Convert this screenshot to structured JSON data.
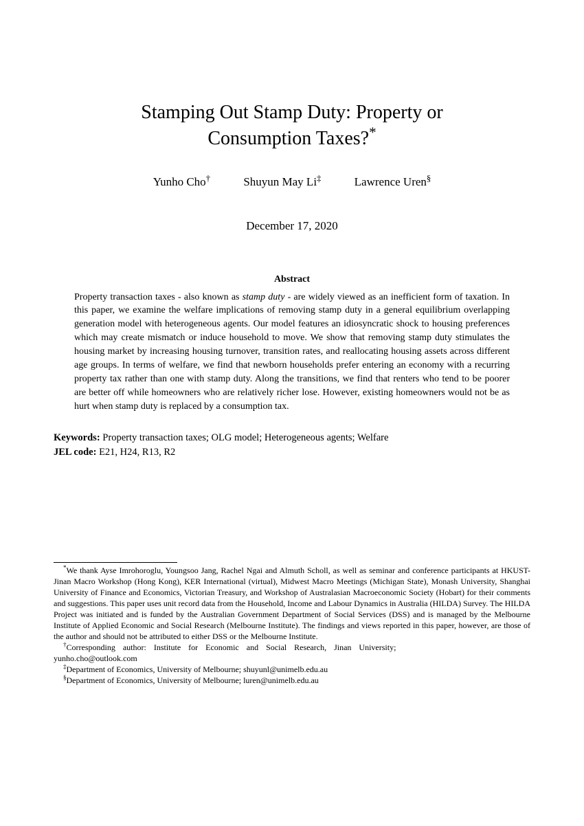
{
  "title_line1": "Stamping Out Stamp Duty: Property or",
  "title_line2": "Consumption Taxes?",
  "title_marker": "*",
  "authors": [
    {
      "name": "Yunho Cho",
      "marker": "†"
    },
    {
      "name": "Shuyun May Li",
      "marker": "‡"
    },
    {
      "name": "Lawrence Uren",
      "marker": "§"
    }
  ],
  "date": "December 17, 2020",
  "abstract_heading": "Abstract",
  "abstract_pre_italic": "Property transaction taxes - also known as ",
  "abstract_italic": "stamp duty",
  "abstract_post_italic": " - are widely viewed as an inefficient form of taxation. In this paper, we examine the welfare implications of removing stamp duty in a general equilibrium overlapping generation model with heterogeneous agents. Our model features an idiosyncratic shock to housing preferences which may create mismatch or induce household to move. We show that removing stamp duty stimulates the housing market by increasing housing turnover, transition rates, and reallocating housing assets across different age groups. In terms of welfare, we find that newborn households prefer entering an economy with a recurring property tax rather than one with stamp duty. Along the transitions, we find that renters who tend to be poorer are better off while homeowners who are relatively richer lose. However, existing homeowners would not be as hurt when stamp duty is replaced by a consumption tax.",
  "keywords_label": "Keywords:",
  "keywords_text": " Property transaction taxes; OLG model; Heterogeneous agents; Welfare",
  "jel_label": "JEL code:",
  "jel_text": " E21, H24, R13, R2",
  "footnotes": {
    "star_marker": "*",
    "star_text": "We thank Ayse Imrohoroglu, Youngsoo Jang, Rachel Ngai and Almuth Scholl, as well as seminar and conference participants at HKUST-Jinan Macro Workshop (Hong Kong), KER International (virtual), Midwest Macro Meetings (Michigan State), Monash University, Shanghai University of Finance and Economics, Victorian Treasury, and Workshop of Australasian Macroeconomic Society (Hobart) for their comments and suggestions. This paper uses unit record data from the Household, Income and Labour Dynamics in Australia (HILDA) Survey. The HILDA Project was initiated and is funded by the Australian Government Department of Social Services (DSS) and is managed by the Melbourne Institute of Applied Economic and Social Research (Melbourne Institute). The findings and views reported in this paper, however, are those of the author and should not be attributed to either DSS or the Melbourne Institute.",
    "dagger_marker": "†",
    "dagger_line1": "Corresponding author: Institute for Economic and Social Research, Jinan University;",
    "dagger_line2": "yunho.cho@outlook.com",
    "ddagger_marker": "‡",
    "ddagger_text": "Department of Economics, University of Melbourne; shuyunl@unimelb.edu.au",
    "section_marker": "§",
    "section_text": "Department of Economics, University of Melbourne; luren@unimelb.edu.au"
  }
}
